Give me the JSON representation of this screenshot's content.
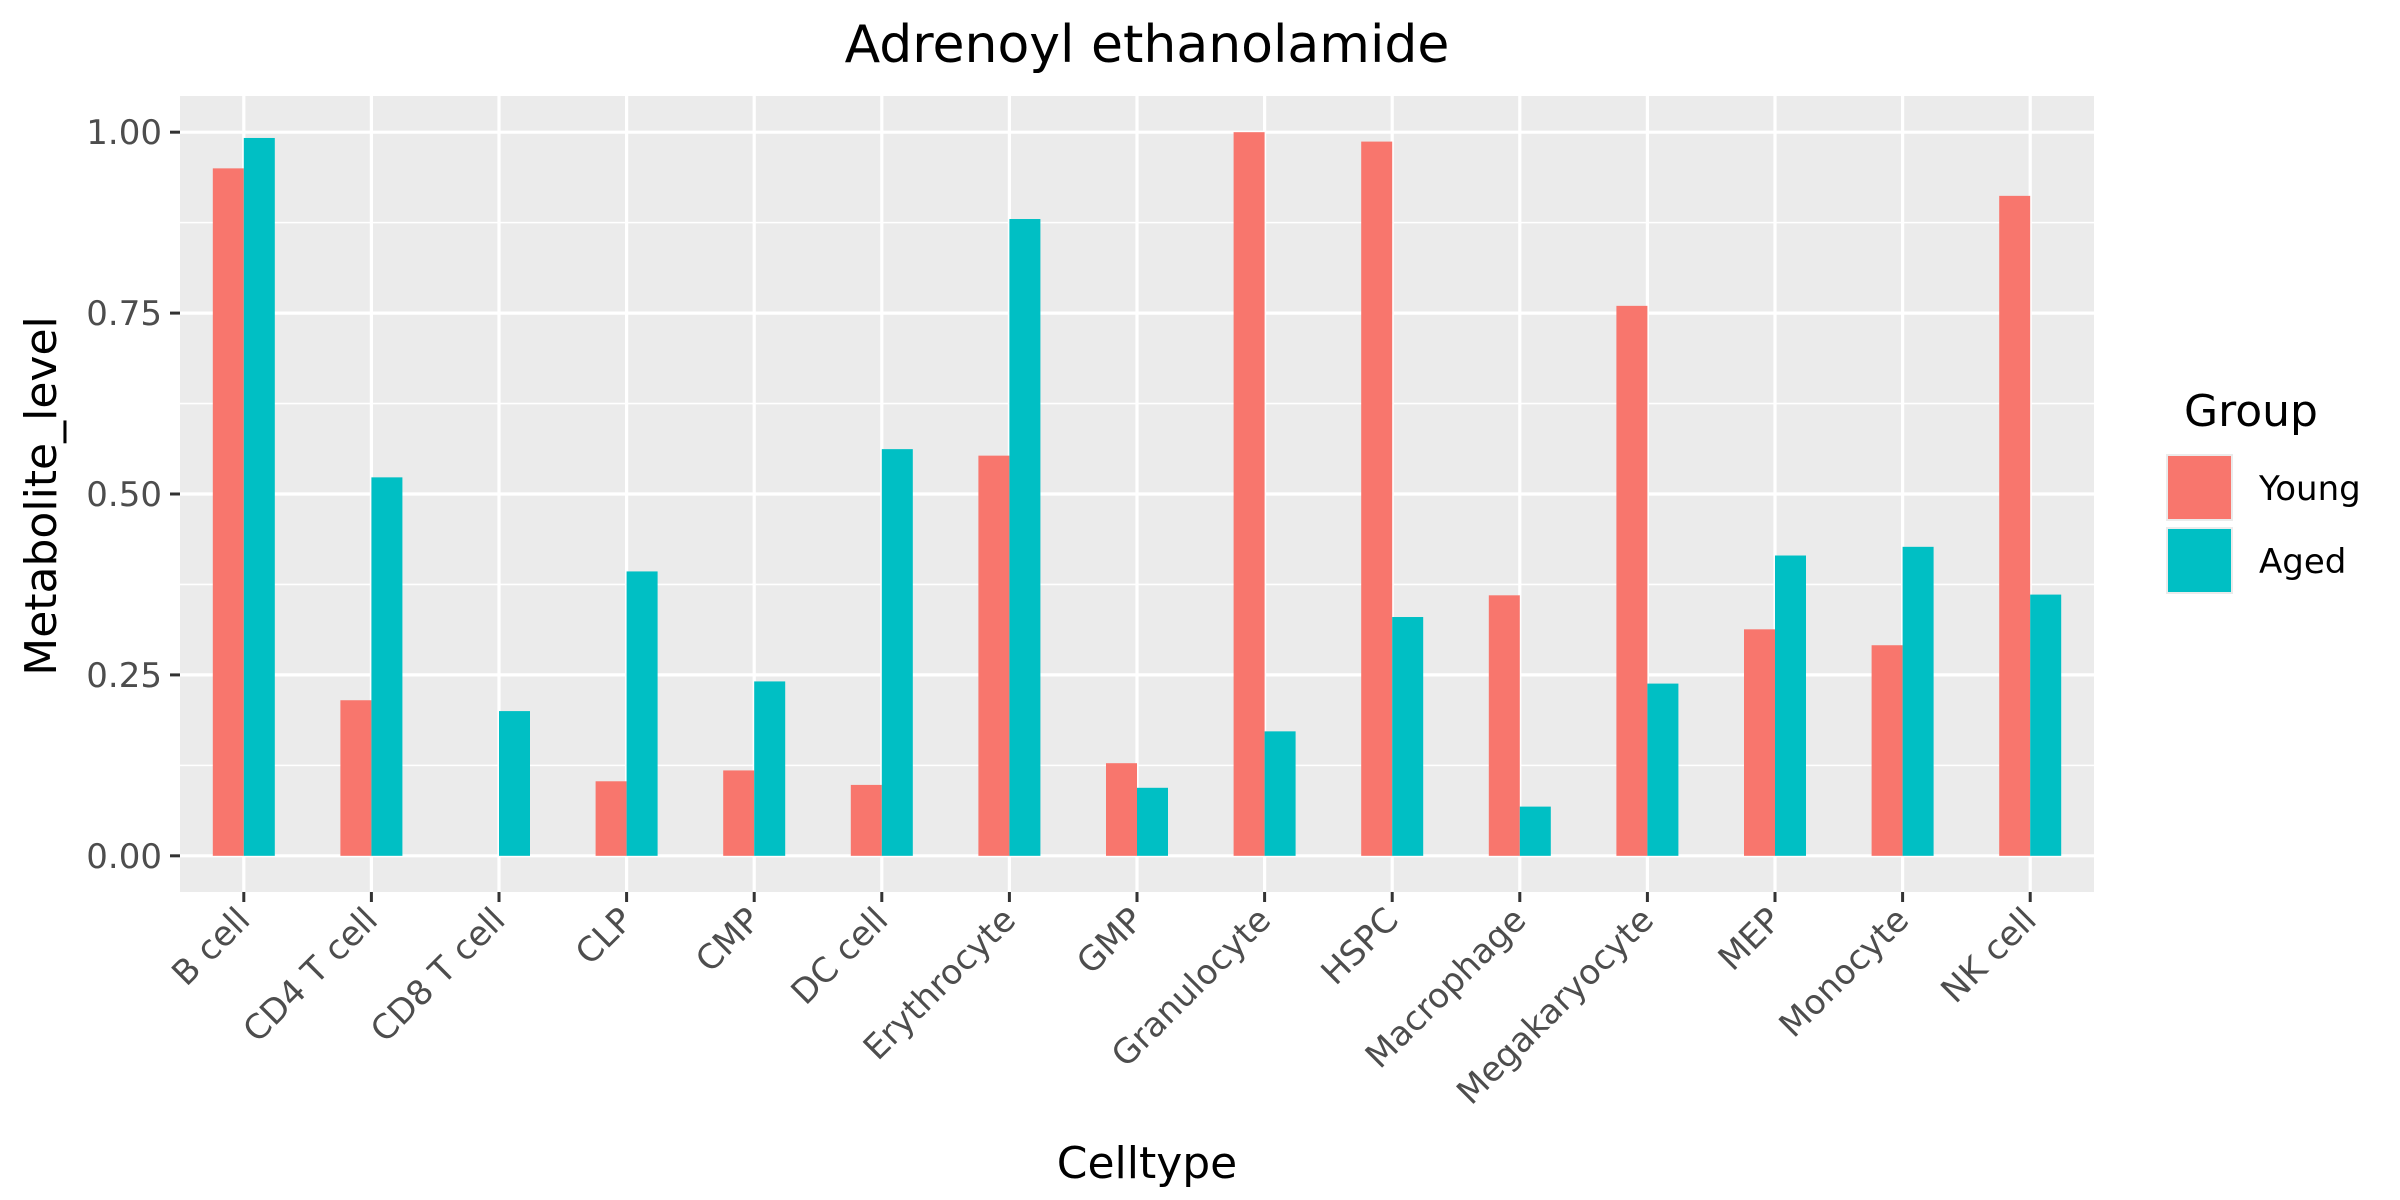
{
  "chart_data": {
    "type": "bar",
    "title": "Adrenoyl ethanolamide",
    "xlabel": "Celltype",
    "ylabel": "Metabolite_level",
    "ylim": [
      -0.05,
      1.05
    ],
    "yticks": [
      0.0,
      0.25,
      0.5,
      0.75,
      1.0
    ],
    "ytick_labels": [
      "0.00",
      "0.25",
      "0.50",
      "0.75",
      "1.00"
    ],
    "grid": true,
    "legend_title": "Group",
    "legend_position": "right",
    "categories": [
      "B cell",
      "CD4 T cell",
      "CD8 T cell",
      "CLP",
      "CMP",
      "DC cell",
      "Erythrocyte",
      "GMP",
      "Granulocyte",
      "HSPC",
      "Macrophage",
      "Megakaryocyte",
      "MEP",
      "Monocyte",
      "NK cell"
    ],
    "series": [
      {
        "name": "Young",
        "color": "#F8766D",
        "values": [
          0.95,
          0.215,
          0.0,
          0.103,
          0.118,
          0.098,
          0.553,
          0.128,
          1.0,
          0.987,
          0.36,
          0.76,
          0.313,
          0.291,
          0.912
        ]
      },
      {
        "name": "Aged",
        "color": "#00BFC4",
        "values": [
          0.992,
          0.523,
          0.2,
          0.393,
          0.241,
          0.562,
          0.88,
          0.094,
          0.172,
          0.33,
          0.068,
          0.238,
          0.415,
          0.427,
          0.361
        ]
      }
    ]
  }
}
